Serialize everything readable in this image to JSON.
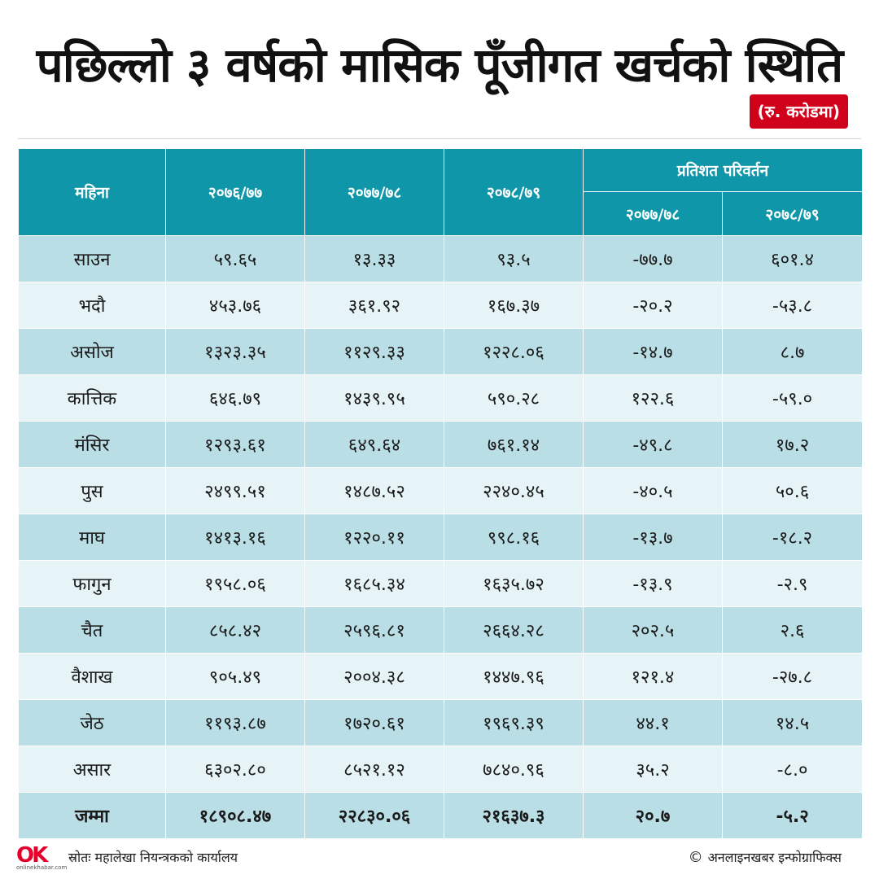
{
  "title": "पछिल्लो ३ वर्षको मासिक पूँजीगत खर्चको स्थिति",
  "unit": "(रु. करोडमा)",
  "table": {
    "headers": {
      "month": "महिना",
      "y1": "२०७६/७७",
      "y2": "२०७७/७८",
      "y3": "२०७८/७९",
      "pct_group": "प्रतिशत परिवर्तन",
      "pct1": "२०७७/७८",
      "pct2": "२०७८/७९"
    },
    "rows": [
      {
        "month": "साउन",
        "y1": "५९.६५",
        "y2": "१३.३३",
        "y3": "९३.५",
        "p1": "-७७.७",
        "p2": "६०१.४"
      },
      {
        "month": "भदौ",
        "y1": "४५३.७६",
        "y2": "३६१.९२",
        "y3": "१६७.३७",
        "p1": "-२०.२",
        "p2": "-५३.८"
      },
      {
        "month": "असोज",
        "y1": "१३२३.३५",
        "y2": "११२९.३३",
        "y3": "१२२८.०६",
        "p1": "-१४.७",
        "p2": "८.७"
      },
      {
        "month": "कात्तिक",
        "y1": "६४६.७९",
        "y2": "१४३९.९५",
        "y3": "५९०.२८",
        "p1": "१२२.६",
        "p2": "-५९.०"
      },
      {
        "month": "मंसिर",
        "y1": "१२९३.६१",
        "y2": "६४९.६४",
        "y3": "७६१.१४",
        "p1": "-४९.८",
        "p2": "१७.२"
      },
      {
        "month": "पुस",
        "y1": "२४९९.५१",
        "y2": "१४८७.५२",
        "y3": "२२४०.४५",
        "p1": "-४०.५",
        "p2": "५०.६"
      },
      {
        "month": "माघ",
        "y1": "१४१३.१६",
        "y2": "१२२०.११",
        "y3": "९९८.१६",
        "p1": "-१३.७",
        "p2": "-१८.२"
      },
      {
        "month": "फागुन",
        "y1": "१९५८.०६",
        "y2": "१६८५.३४",
        "y3": "१६३५.७२",
        "p1": "-१३.९",
        "p2": "-२.९"
      },
      {
        "month": "चैत",
        "y1": "८५८.४२",
        "y2": "२५९६.८१",
        "y3": "२६६४.२८",
        "p1": "२०२.५",
        "p2": "२.६"
      },
      {
        "month": "वैशाख",
        "y1": "९०५.४९",
        "y2": "२००४.३८",
        "y3": "१४४७.९६",
        "p1": "१२१.४",
        "p2": "-२७.८"
      },
      {
        "month": "जेठ",
        "y1": "११९३.८७",
        "y2": "१७२०.६१",
        "y3": "१९६९.३९",
        "p1": "४४.१",
        "p2": "१४.५"
      },
      {
        "month": "असार",
        "y1": "६३०२.८०",
        "y2": "८५२१.१२",
        "y3": "७८४०.९६",
        "p1": "३५.२",
        "p2": "-८.०"
      }
    ],
    "total": {
      "month": "जम्मा",
      "y1": "१८९०८.४७",
      "y2": "२२८३०.०६",
      "y3": "२१६३७.३",
      "p1": "२०.७",
      "p2": "-५.२"
    }
  },
  "footer": {
    "logo_text": "OK",
    "logo_sub": "onlinekhabar.com",
    "source": "स्रोतः महालेखा नियन्त्रकको कार्यालय",
    "credit": "अनलाइनखबर इन्फोग्राफिक्स",
    "copyright_symbol": "©"
  },
  "colors": {
    "header_bg": "#0f97a9",
    "row_dark": "#b9dee5",
    "row_light": "#e6f4f7",
    "badge": "#d0021b"
  }
}
